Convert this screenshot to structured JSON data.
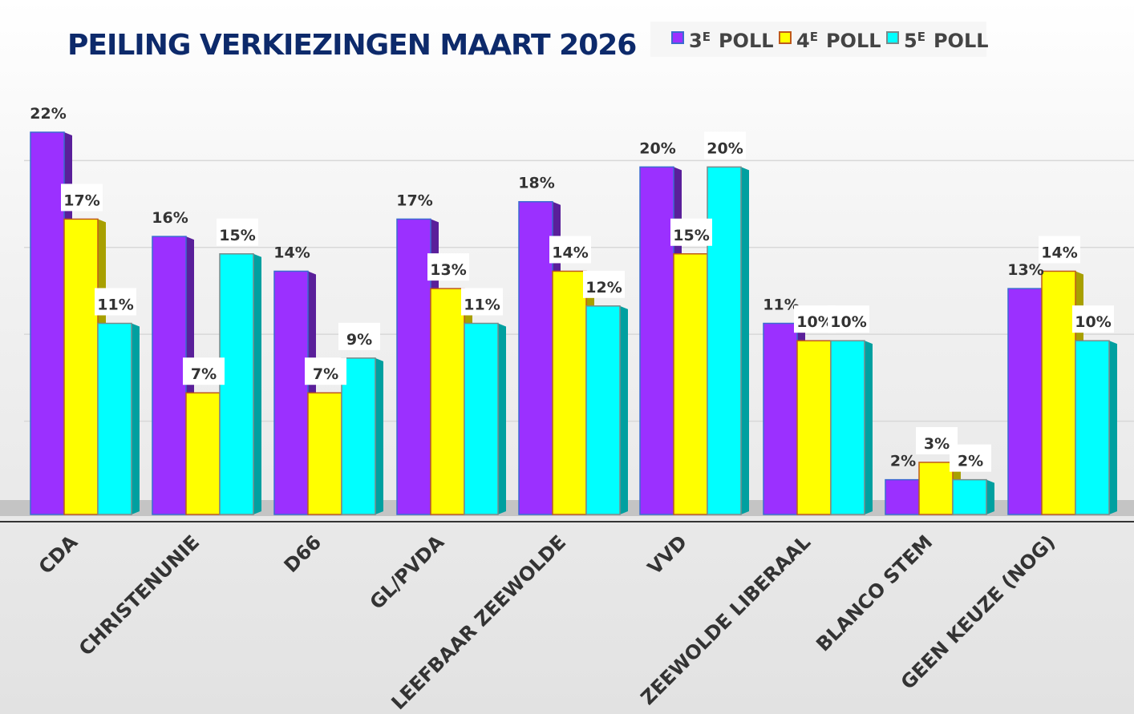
{
  "chart_data": {
    "type": "bar",
    "title": "PEILING VERKIEZINGEN MAART 2026",
    "xlabel": "",
    "ylabel": "",
    "ylim": [
      0,
      24
    ],
    "grid": true,
    "legend_position": "top-right",
    "value_suffix": "%",
    "categories": [
      "CDA",
      "CHRISTENUNIE",
      "D66",
      "GL/PVDA",
      "LEEFBAAR ZEEWOLDE",
      "VVD",
      "ZEEWOLDE LIBERAAL",
      "BLANCO STEM",
      "GEEN KEUZE (NOG)"
    ],
    "series": [
      {
        "name": "3E POLL",
        "num": "3",
        "sup": "E",
        "label": "POLL",
        "color": "#9b30ff",
        "side": "#5a1f9a",
        "border": "#3a6bd0",
        "values": [
          22,
          16,
          14,
          17,
          18,
          20,
          11,
          2,
          13
        ]
      },
      {
        "name": "4E POLL",
        "num": "4",
        "sup": "E",
        "label": "POLL",
        "color": "#ffff00",
        "side": "#a8a000",
        "border": "#c05a1a",
        "values": [
          17,
          7,
          7,
          13,
          14,
          15,
          10,
          3,
          14
        ]
      },
      {
        "name": "5E POLL",
        "num": "5",
        "sup": "E",
        "label": "POLL",
        "color": "#00ffff",
        "side": "#00a0a0",
        "border": "#7a8a8a",
        "values": [
          11,
          15,
          9,
          11,
          12,
          20,
          10,
          2,
          10
        ]
      }
    ]
  }
}
